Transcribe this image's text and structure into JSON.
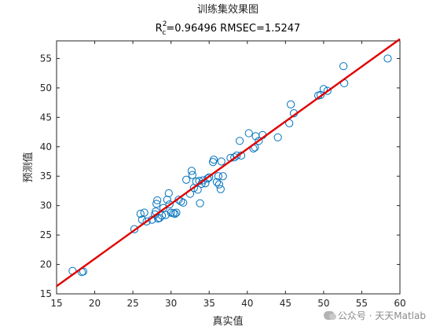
{
  "chart_data": {
    "type": "scatter",
    "title": "训练集效果图",
    "subtitle": {
      "r_base": "R",
      "r_sup": "2",
      "r_sub": "c",
      "text": "=0.96496  RMSEC=1.5247"
    },
    "xlabel": "真实值",
    "ylabel": "预测值",
    "xlim": [
      15,
      60
    ],
    "ylim": [
      15,
      58
    ],
    "xticks": [
      15,
      20,
      25,
      30,
      35,
      40,
      45,
      50,
      55,
      60
    ],
    "yticks": [
      15,
      20,
      25,
      30,
      35,
      40,
      45,
      50,
      55
    ],
    "fit_line": {
      "x": [
        15,
        60
      ],
      "y": [
        16.3,
        58.3
      ],
      "color": "#e00000"
    },
    "marker_color": "#0072bd",
    "series": [
      {
        "x": [
          17.1,
          18.3,
          18.5,
          25.2,
          26.0,
          26.2,
          26.5,
          26.8,
          27.5,
          27.9,
          28.0,
          28.1,
          28.2,
          28.3,
          28.5,
          28.8,
          29.0,
          29.3,
          29.5,
          29.7,
          29.8,
          30.0,
          30.3,
          30.5,
          30.7,
          31.0,
          31.3,
          31.6,
          32.0,
          32.5,
          32.7,
          32.8,
          33.0,
          33.3,
          33.5,
          33.7,
          33.8,
          34.0,
          34.2,
          34.5,
          34.8,
          35.0,
          35.5,
          35.6,
          36.0,
          36.2,
          36.3,
          36.5,
          36.6,
          36.8,
          37.8,
          38.3,
          38.6,
          39.0,
          39.2,
          40.2,
          40.8,
          41.0,
          41.1,
          41.5,
          42.0,
          44.0,
          45.5,
          45.7,
          46.1,
          49.3,
          49.6,
          50.0,
          50.5,
          52.6,
          52.7,
          58.4
        ],
        "y": [
          18.9,
          18.7,
          18.8,
          26.0,
          28.6,
          27.6,
          28.8,
          27.3,
          27.6,
          28.5,
          29.0,
          30.3,
          30.9,
          27.8,
          27.9,
          28.3,
          29.6,
          28.4,
          31.0,
          32.1,
          30.2,
          28.8,
          28.7,
          28.6,
          28.8,
          31.0,
          30.7,
          30.5,
          34.4,
          32.0,
          35.9,
          35.2,
          33.0,
          34.1,
          32.7,
          34.2,
          30.4,
          33.7,
          34.3,
          33.8,
          34.6,
          34.8,
          37.4,
          37.8,
          34.0,
          35.0,
          33.6,
          32.8,
          37.5,
          35.0,
          38.1,
          38.2,
          38.5,
          41.0,
          38.5,
          42.3,
          39.7,
          39.9,
          41.8,
          41.0,
          42.0,
          41.6,
          44.0,
          47.2,
          45.7,
          48.7,
          48.8,
          49.8,
          49.5,
          53.7,
          50.8,
          55.0
        ]
      }
    ]
  },
  "watermark": {
    "text": "公众号 · 天天Matlab",
    "icon": "wechat-icon"
  }
}
